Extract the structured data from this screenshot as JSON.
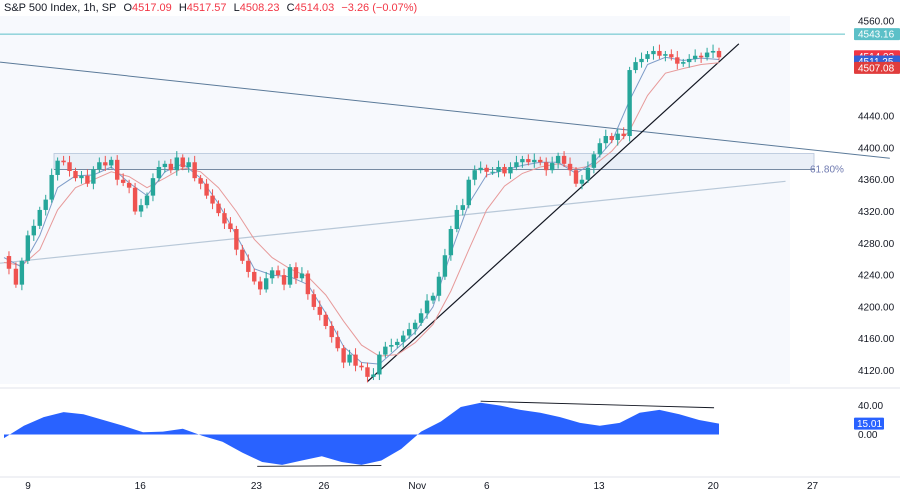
{
  "header": {
    "symbol": "S&P 500 Index",
    "interval": "1h",
    "exchange": "SP",
    "open_label": "O",
    "open": "4517.09",
    "high_label": "H",
    "high": "4517.57",
    "low_label": "L",
    "low": "4508.23",
    "close_label": "C",
    "close": "4514.03",
    "change": "−3.26 (−0.07%)"
  },
  "colors": {
    "up": "#26a69a",
    "down": "#ef5350",
    "ma_fast": "#7e9cc8",
    "ma_slow": "#e79a9a",
    "trend_line": "#131722",
    "channel_line": "#5b7a99",
    "support_line": "#b8c8d8",
    "resistance": "#5cc0c8",
    "oscillator": "#2962ff"
  },
  "chart_data": [
    {
      "type": "candlestick",
      "title": "",
      "y_ticks": [
        "4560.00",
        "4440.00",
        "4400.00",
        "4360.00",
        "4320.00",
        "4280.00",
        "4240.00",
        "4200.00",
        "4160.00",
        "4120.00"
      ],
      "x_ticks": [
        "9",
        "16",
        "23",
        "26",
        "Nov",
        "6",
        "13",
        "20",
        "27"
      ],
      "ylim": [
        4103,
        4566
      ],
      "last_price": "4514.03",
      "price_badges": [
        {
          "label": "4543.16",
          "value": 4543.16,
          "kind": "level"
        },
        {
          "label": "4514.03",
          "value": 4514.03,
          "kind": "close"
        },
        {
          "label": "4511.25",
          "value": 4511.25,
          "kind": "ma_fast"
        },
        {
          "label": "4507.08",
          "value": 4507.08,
          "kind": "ma_slow"
        }
      ],
      "fib_label": "61.80%",
      "fib_level": 4373,
      "zone": [
        4373,
        4393
      ],
      "resistance_level": 4543.16,
      "series": [
        {
          "name": "",
          "points": [
            [
              0,
              4264
            ],
            [
              5,
              4248
            ],
            [
              12,
              4228
            ],
            [
              18,
              4258
            ],
            [
              24,
              4290
            ],
            [
              30,
              4302
            ],
            [
              36,
              4322
            ],
            [
              42,
              4335
            ],
            [
              48,
              4366
            ],
            [
              54,
              4384
            ],
            [
              60,
              4382
            ],
            [
              66,
              4371
            ],
            [
              72,
              4362
            ],
            [
              78,
              4365
            ],
            [
              84,
              4355
            ],
            [
              90,
              4373
            ],
            [
              96,
              4382
            ],
            [
              102,
              4378
            ],
            [
              108,
              4385
            ],
            [
              114,
              4360
            ],
            [
              120,
              4356
            ],
            [
              126,
              4350
            ],
            [
              132,
              4320
            ],
            [
              138,
              4328
            ],
            [
              144,
              4340
            ],
            [
              150,
              4362
            ],
            [
              156,
              4376
            ],
            [
              162,
              4380
            ],
            [
              168,
              4372
            ],
            [
              174,
              4388
            ],
            [
              180,
              4376
            ],
            [
              186,
              4382
            ],
            [
              192,
              4362
            ],
            [
              198,
              4355
            ],
            [
              204,
              4340
            ],
            [
              210,
              4330
            ],
            [
              216,
              4318
            ],
            [
              222,
              4305
            ],
            [
              228,
              4298
            ],
            [
              234,
              4272
            ],
            [
              240,
              4258
            ],
            [
              246,
              4244
            ],
            [
              252,
              4232
            ],
            [
              258,
              4222
            ],
            [
              264,
              4236
            ],
            [
              270,
              4246
            ],
            [
              276,
              4240
            ],
            [
              282,
              4228
            ],
            [
              288,
              4250
            ],
            [
              294,
              4236
            ],
            [
              300,
              4242
            ],
            [
              306,
              4216
            ],
            [
              312,
              4200
            ],
            [
              318,
              4190
            ],
            [
              324,
              4176
            ],
            [
              330,
              4162
            ],
            [
              336,
              4148
            ],
            [
              342,
              4130
            ],
            [
              348,
              4140
            ],
            [
              354,
              4126
            ],
            [
              360,
              4124
            ],
            [
              366,
              4112
            ],
            [
              372,
              4115
            ],
            [
              378,
              4140
            ],
            [
              384,
              4150
            ],
            [
              390,
              4152
            ],
            [
              396,
              4156
            ],
            [
              402,
              4164
            ],
            [
              408,
              4172
            ],
            [
              414,
              4180
            ],
            [
              420,
              4192
            ],
            [
              426,
              4208
            ],
            [
              432,
              4214
            ],
            [
              438,
              4238
            ],
            [
              444,
              4265
            ],
            [
              450,
              4298
            ],
            [
              456,
              4322
            ],
            [
              462,
              4328
            ],
            [
              468,
              4360
            ],
            [
              474,
              4372
            ],
            [
              480,
              4375
            ],
            [
              486,
              4370
            ],
            [
              492,
              4370
            ],
            [
              498,
              4376
            ],
            [
              504,
              4368
            ],
            [
              510,
              4376
            ],
            [
              516,
              4382
            ],
            [
              522,
              4386
            ],
            [
              528,
              4382
            ],
            [
              534,
              4385
            ],
            [
              540,
              4382
            ],
            [
              546,
              4372
            ],
            [
              552,
              4381
            ],
            [
              558,
              4390
            ],
            [
              564,
              4380
            ],
            [
              570,
              4372
            ],
            [
              576,
              4355
            ],
            [
              582,
              4360
            ],
            [
              588,
              4375
            ],
            [
              594,
              4392
            ],
            [
              600,
              4406
            ],
            [
              606,
              4415
            ],
            [
              612,
              4410
            ],
            [
              618,
              4418
            ],
            [
              624,
              4415
            ],
            [
              630,
              4498
            ],
            [
              636,
              4508
            ],
            [
              642,
              4512
            ],
            [
              648,
              4518
            ],
            [
              654,
              4522
            ],
            [
              660,
              4516
            ],
            [
              666,
              4518
            ],
            [
              672,
              4514
            ],
            [
              678,
              4506
            ],
            [
              684,
              4508
            ],
            [
              690,
              4512
            ],
            [
              696,
              4516
            ],
            [
              702,
              4514
            ],
            [
              708,
              4520
            ],
            [
              714,
              4522
            ],
            [
              720,
              4514
            ]
          ]
        },
        {
          "name": "",
          "points": [
            [
              0,
              4262
            ],
            [
              18,
              4250
            ],
            [
              36,
              4290
            ],
            [
              54,
              4350
            ],
            [
              72,
              4365
            ],
            [
              90,
              4366
            ],
            [
              108,
              4376
            ],
            [
              126,
              4356
            ],
            [
              144,
              4340
            ],
            [
              162,
              4370
            ],
            [
              180,
              4380
            ],
            [
              198,
              4362
            ],
            [
              216,
              4330
            ],
            [
              234,
              4290
            ],
            [
              252,
              4248
            ],
            [
              270,
              4240
            ],
            [
              288,
              4238
            ],
            [
              306,
              4228
            ],
            [
              324,
              4192
            ],
            [
              342,
              4150
            ],
            [
              360,
              4130
            ],
            [
              378,
              4128
            ],
            [
              396,
              4148
            ],
            [
              414,
              4168
            ],
            [
              432,
              4200
            ],
            [
              450,
              4268
            ],
            [
              468,
              4330
            ],
            [
              486,
              4366
            ],
            [
              504,
              4372
            ],
            [
              522,
              4378
            ],
            [
              540,
              4382
            ],
            [
              558,
              4382
            ],
            [
              576,
              4368
            ],
            [
              594,
              4382
            ],
            [
              612,
              4408
            ],
            [
              630,
              4460
            ],
            [
              648,
              4505
            ],
            [
              666,
              4514
            ],
            [
              684,
              4510
            ],
            [
              702,
              4513
            ],
            [
              720,
              4511.25
            ]
          ]
        },
        {
          "name": "",
          "points": [
            [
              0,
              4256
            ],
            [
              18,
              4252
            ],
            [
              36,
              4272
            ],
            [
              54,
              4322
            ],
            [
              72,
              4350
            ],
            [
              90,
              4360
            ],
            [
              108,
              4370
            ],
            [
              126,
              4364
            ],
            [
              144,
              4350
            ],
            [
              162,
              4362
            ],
            [
              180,
              4375
            ],
            [
              198,
              4370
            ],
            [
              216,
              4350
            ],
            [
              234,
              4320
            ],
            [
              252,
              4285
            ],
            [
              270,
              4262
            ],
            [
              288,
              4248
            ],
            [
              306,
              4238
            ],
            [
              324,
              4215
            ],
            [
              342,
              4182
            ],
            [
              360,
              4152
            ],
            [
              378,
              4138
            ],
            [
              396,
              4140
            ],
            [
              414,
              4155
            ],
            [
              432,
              4178
            ],
            [
              450,
              4220
            ],
            [
              468,
              4272
            ],
            [
              486,
              4322
            ],
            [
              504,
              4352
            ],
            [
              522,
              4368
            ],
            [
              540,
              4376
            ],
            [
              558,
              4380
            ],
            [
              576,
              4374
            ],
            [
              594,
              4378
            ],
            [
              612,
              4396
            ],
            [
              630,
              4422
            ],
            [
              648,
              4466
            ],
            [
              666,
              4494
            ],
            [
              684,
              4500
            ],
            [
              702,
              4505
            ],
            [
              720,
              4507.08
            ]
          ]
        }
      ]
    },
    {
      "type": "area",
      "title": "",
      "y_ticks": [
        "40.00",
        "0.00"
      ],
      "ylim": [
        -56,
        56
      ],
      "last_value": "15.01",
      "series": [
        {
          "name": "",
          "points": [
            [
              0,
              -5
            ],
            [
              20,
              12
            ],
            [
              40,
              24
            ],
            [
              60,
              31
            ],
            [
              80,
              28
            ],
            [
              100,
              20
            ],
            [
              120,
              12
            ],
            [
              140,
              3
            ],
            [
              160,
              4
            ],
            [
              180,
              8
            ],
            [
              200,
              -2
            ],
            [
              220,
              -10
            ],
            [
              240,
              -25
            ],
            [
              260,
              -38
            ],
            [
              280,
              -42
            ],
            [
              300,
              -36
            ],
            [
              320,
              -30
            ],
            [
              340,
              -38
            ],
            [
              360,
              -42
            ],
            [
              380,
              -36
            ],
            [
              400,
              -20
            ],
            [
              420,
              4
            ],
            [
              440,
              18
            ],
            [
              460,
              38
            ],
            [
              480,
              44
            ],
            [
              500,
              40
            ],
            [
              520,
              34
            ],
            [
              540,
              30
            ],
            [
              560,
              24
            ],
            [
              580,
              16
            ],
            [
              600,
              12
            ],
            [
              620,
              16
            ],
            [
              640,
              30
            ],
            [
              660,
              34
            ],
            [
              680,
              28
            ],
            [
              700,
              20
            ],
            [
              720,
              15.01
            ]
          ]
        }
      ]
    }
  ]
}
